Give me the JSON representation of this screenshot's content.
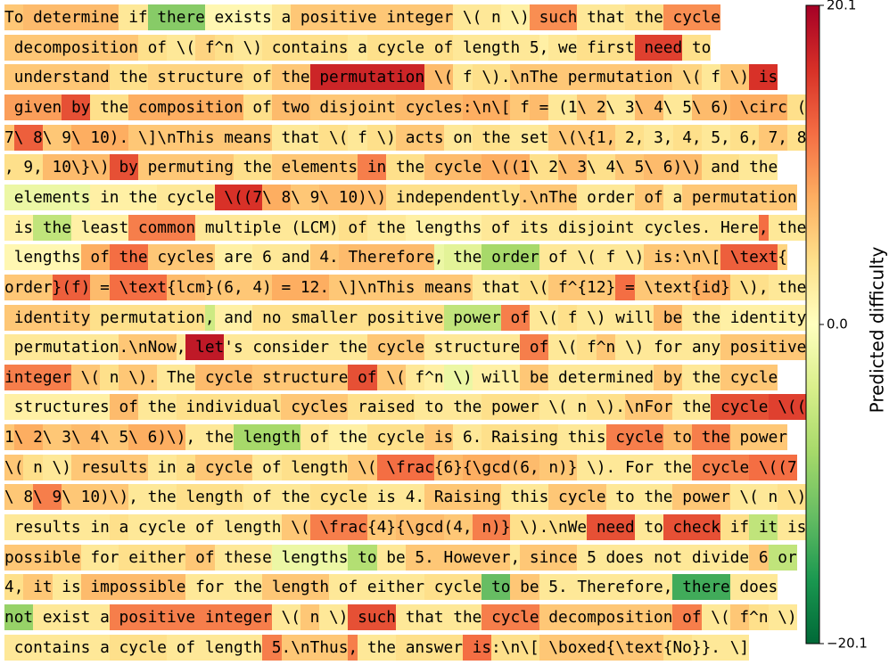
{
  "chart_data": {
    "type": "text-heatmap",
    "colormap": "RdYlGn_r",
    "clim": [
      -20.1,
      20.1
    ],
    "colorbar_label": "Predicted difficulty",
    "cticks": [
      20.1,
      {
        "value": 0,
        "label": "0.0"
      },
      {
        "value": -20.1,
        "label": "−20.1"
      }
    ],
    "lines": [
      {
        "tokens": [
          "To",
          " determine",
          " if",
          " there",
          " exists",
          " a",
          " positive",
          " integer",
          " \\(",
          " n",
          " \\)",
          " such",
          " that",
          " the",
          " cycle"
        ],
        "values": [
          6,
          7,
          3,
          -10,
          1,
          3,
          6,
          6,
          3,
          3,
          2,
          10,
          3,
          4,
          10
        ]
      },
      {
        "tokens": [
          " decomposition",
          " of",
          " \\(",
          " f",
          "^n",
          " \\)",
          " contains",
          " a",
          " cycle",
          " of",
          " length",
          " 5",
          ",",
          " we",
          " first",
          " need",
          " to"
        ],
        "values": [
          6,
          4,
          3,
          5,
          4,
          3,
          4,
          3,
          4,
          4,
          3,
          3,
          2,
          3,
          4,
          15,
          4
        ]
      },
      {
        "tokens": [
          " understand",
          " the",
          " structure",
          " of",
          " the",
          " permutation",
          " \\(",
          " f",
          " \\).",
          "\\nThe",
          " permutation",
          " \\(",
          " f",
          " \\)",
          " is"
        ],
        "values": [
          6,
          4,
          5,
          4,
          6,
          17,
          7,
          3,
          4,
          6,
          6,
          5,
          3,
          6,
          16
        ]
      },
      {
        "tokens": [
          " given",
          " by",
          " the",
          " composition",
          " of",
          " two",
          " disjoint",
          " cycles",
          ":\\n\\[",
          " f",
          " =",
          " (1",
          "\\ 2",
          "\\ 3",
          "\\ 4",
          "\\ 5",
          "\\ 6)",
          " \\circ",
          " ("
        ],
        "values": [
          9,
          14,
          4,
          8,
          4,
          7,
          6,
          7,
          8,
          6,
          7,
          3,
          6,
          3,
          7,
          3,
          7,
          8,
          4
        ]
      },
      {
        "tokens": [
          "7",
          "\\ 8",
          "\\ 9",
          "\\ 10).",
          " \\]\\nThis",
          " means",
          " that",
          " \\(",
          " f",
          " \\)",
          " acts",
          " on",
          " the",
          " set",
          " \\(\\{1,",
          " 2,",
          " 3,",
          " 4,",
          " 5,",
          " 6,",
          " 7,",
          " 8"
        ],
        "values": [
          6,
          13,
          6,
          8,
          6,
          6,
          3,
          4,
          3,
          4,
          6,
          3,
          4,
          3,
          6,
          4,
          3,
          4,
          3,
          4,
          6,
          4
        ]
      },
      {
        "tokens": [
          ", 9,",
          " 10\\}\\)",
          " by",
          " permuting",
          " the",
          " elements",
          " in",
          " the",
          " cycle",
          " \\((1",
          "\\ 2",
          "\\ 3",
          "\\ 4",
          "\\ 5",
          "\\ 6)\\)",
          " and",
          " the"
        ],
        "values": [
          4,
          7,
          14,
          6,
          4,
          6,
          11,
          4,
          7,
          8,
          4,
          7,
          4,
          6,
          7,
          4,
          3
        ]
      },
      {
        "tokens": [
          " elements",
          " in",
          " the",
          " cycle",
          " \\((7",
          "\\ 8",
          "\\ 9",
          "\\ 10)\\)",
          " independently",
          ".\\nThe",
          " order",
          " of",
          " a",
          " permutation"
        ],
        "values": [
          -2,
          2,
          2,
          3,
          16,
          8,
          6,
          7,
          4,
          6,
          3,
          6,
          3,
          6
        ]
      },
      {
        "tokens": [
          " is",
          " the",
          " least",
          " common",
          " multiple",
          " (LCM)",
          " of",
          " the",
          " lengths",
          " of",
          " its",
          " disjoint",
          " cycles",
          ".",
          " Here",
          ",",
          " the"
        ],
        "values": [
          2,
          -6,
          2,
          11,
          3,
          3,
          4,
          3,
          2,
          3,
          3,
          3,
          3,
          3,
          3,
          12,
          3
        ]
      },
      {
        "tokens": [
          " lengths",
          " of",
          " the",
          " cycles",
          " are",
          " 6",
          " and",
          " 4.",
          " Therefore",
          ",",
          " the",
          " order",
          " of",
          " \\(",
          " f",
          " \\)",
          " is",
          ":\\n\\[",
          " \\text",
          "{"
        ],
        "values": [
          1,
          8,
          12,
          6,
          2,
          3,
          3,
          6,
          7,
          -2,
          -3,
          -8,
          3,
          3,
          3,
          3,
          6,
          6,
          13,
          5
        ]
      },
      {
        "tokens": [
          "order",
          "}(f)",
          " =",
          " \\text",
          "{lcm",
          "}(6,",
          " 4)",
          " =",
          " 12.",
          " \\]\\nThis",
          " means",
          " that",
          " \\(",
          " f",
          "^{12}",
          " =",
          " \\text",
          "{id}",
          " \\),",
          " the"
        ],
        "values": [
          6,
          13,
          7,
          12,
          7,
          6,
          6,
          8,
          8,
          6,
          6,
          3,
          4,
          6,
          6,
          12,
          6,
          8,
          4,
          3
        ]
      },
      {
        "tokens": [
          " identity",
          " permutation",
          ",",
          " and",
          " no",
          " smaller",
          " positive",
          " power",
          " of",
          " \\(",
          " f",
          " \\)",
          " will",
          " be",
          " the",
          " identity"
        ],
        "values": [
          6,
          4,
          -5,
          2,
          4,
          4,
          4,
          -6,
          11,
          3,
          4,
          3,
          3,
          7,
          3,
          2
        ]
      },
      {
        "tokens": [
          " permutation",
          ".\\nNow",
          ",",
          " let",
          "'s",
          " consider",
          " the",
          " cycle",
          " structure",
          " of",
          " \\(",
          " f",
          "^n",
          " \\)",
          " for",
          " any",
          " positive"
        ],
        "values": [
          3,
          6,
          3,
          18,
          3,
          3,
          3,
          6,
          3,
          11,
          3,
          4,
          6,
          3,
          3,
          3,
          6
        ]
      },
      {
        "tokens": [
          "integer",
          " \\(",
          " n",
          " \\).",
          " The",
          " cycle",
          " structure",
          " of",
          " \\(",
          " f",
          "^n",
          " \\)",
          " will",
          " be",
          " determined",
          " by",
          " the",
          " cycle"
        ],
        "values": [
          11,
          6,
          4,
          6,
          3,
          7,
          6,
          14,
          6,
          3,
          2,
          -2,
          2,
          6,
          3,
          6,
          3,
          6
        ]
      },
      {
        "tokens": [
          " structures",
          " of",
          " the",
          " individual",
          " cycles",
          " raised",
          " to",
          " the",
          " power",
          " \\(",
          " n",
          " \\).",
          "\\nFor",
          " the",
          " cycle",
          " \\(("
        ],
        "values": [
          2,
          7,
          3,
          4,
          6,
          4,
          3,
          3,
          4,
          3,
          3,
          4,
          6,
          3,
          14,
          15
        ]
      },
      {
        "tokens": [
          "1",
          "\\ 2",
          "\\ 3",
          "\\ 4",
          "\\ 5",
          "\\ 6)\\)",
          ",",
          " the",
          " length",
          " of",
          " the",
          " cycle",
          " is",
          " 6.",
          " Raising",
          " this",
          " cycle",
          " to",
          " the",
          " power"
        ],
        "values": [
          6,
          8,
          6,
          7,
          6,
          8,
          3,
          3,
          -8,
          3,
          2,
          4,
          6,
          3,
          4,
          3,
          11,
          7,
          11,
          6
        ]
      },
      {
        "tokens": [
          "\\(",
          " n",
          " \\)",
          " results",
          " in",
          " a",
          " cycle",
          " of",
          " length",
          " \\(",
          " \\frac",
          "{6}",
          "{\\gcd",
          "(6,",
          " n)}",
          " \\).",
          " For",
          " the",
          " cycle",
          " \\((7"
        ],
        "values": [
          6,
          4,
          3,
          6,
          3,
          4,
          6,
          3,
          4,
          6,
          12,
          7,
          8,
          7,
          6,
          3,
          3,
          3,
          11,
          12
        ]
      },
      {
        "tokens": [
          "\\ 8",
          "\\ 9",
          "\\ 10)\\)",
          ",",
          " the",
          " length",
          " of",
          " the",
          " cycle",
          " is",
          " 4.",
          " Raising",
          " this",
          " cycle",
          " to",
          " the",
          " power",
          " \\(",
          " n",
          " \\)"
        ],
        "values": [
          6,
          11,
          6,
          3,
          3,
          4,
          3,
          3,
          4,
          3,
          3,
          6,
          3,
          6,
          3,
          3,
          6,
          3,
          3,
          4
        ]
      },
      {
        "tokens": [
          " results",
          " in",
          " a",
          " cycle",
          " of",
          " length",
          " \\(",
          " \\frac",
          "{4}",
          "{\\gcd",
          "(4,",
          " n)}",
          " \\).",
          "\\nWe",
          " need",
          " to",
          " check",
          " if",
          " it",
          " is"
        ],
        "values": [
          3,
          3,
          4,
          3,
          3,
          3,
          6,
          11,
          6,
          7,
          6,
          11,
          4,
          4,
          14,
          3,
          14,
          4,
          -6,
          3
        ]
      },
      {
        "tokens": [
          "possible",
          " for",
          " either",
          " of",
          " these",
          " lengths",
          " to",
          " be",
          " 5.",
          " However",
          ",",
          " since",
          " 5",
          " does",
          " not",
          " divide",
          " 6",
          " or"
        ],
        "values": [
          6,
          3,
          4,
          6,
          3,
          -2,
          -7,
          3,
          6,
          6,
          3,
          6,
          3,
          3,
          3,
          3,
          6,
          -6
        ]
      },
      {
        "tokens": [
          "4,",
          " it",
          " is",
          " impossible",
          " for",
          " the",
          " length",
          " of",
          " either",
          " cycle",
          " to",
          " be",
          " 5.",
          " Therefore",
          ",",
          " there",
          " does"
        ],
        "values": [
          4,
          6,
          3,
          7,
          3,
          3,
          6,
          3,
          3,
          4,
          -12,
          6,
          3,
          3,
          3,
          -14,
          3
        ]
      },
      {
        "tokens": [
          "not",
          " exist",
          " a",
          " positive",
          " integer",
          " \\(",
          " n",
          " \\)",
          " such",
          " that",
          " the",
          " cycle",
          " decomposition",
          " of",
          " \\(",
          " f",
          "^n",
          " \\)"
        ],
        "values": [
          -9,
          3,
          3,
          11,
          11,
          3,
          6,
          3,
          14,
          3,
          3,
          11,
          6,
          11,
          3,
          6,
          4,
          3
        ]
      },
      {
        "tokens": [
          " contains",
          " a",
          " cycle",
          " of",
          " length",
          " 5",
          ".\\nThus",
          ",",
          " the",
          " answer",
          " is",
          ":\\n\\[",
          " \\boxed",
          "{\\text",
          "{No",
          "}}.",
          " \\]"
        ],
        "values": [
          3,
          3,
          4,
          3,
          3,
          11,
          6,
          11,
          3,
          4,
          12,
          4,
          6,
          6,
          4,
          3,
          3
        ]
      }
    ]
  }
}
